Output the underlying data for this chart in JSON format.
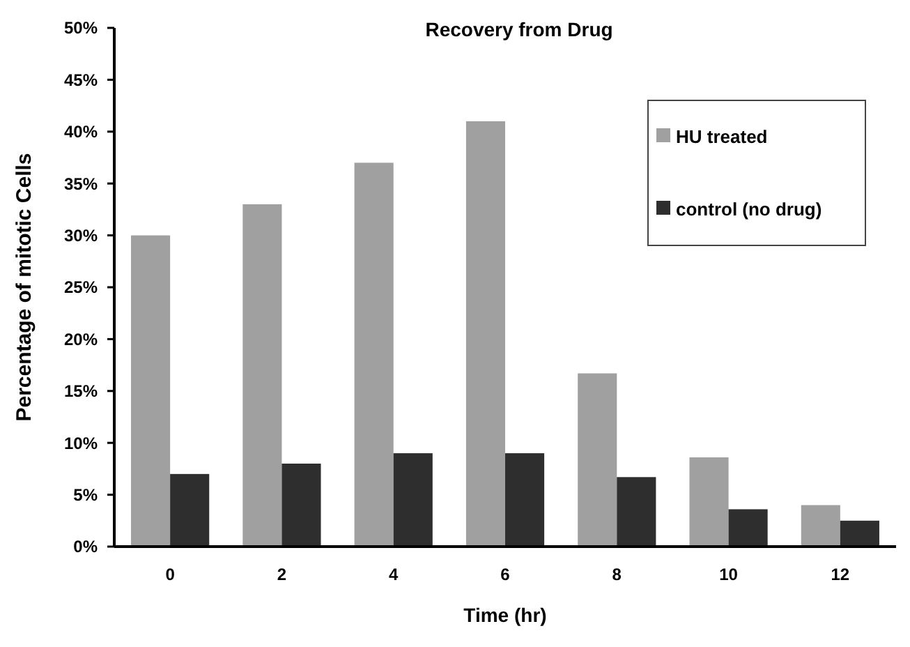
{
  "chart_data": {
    "type": "bar",
    "title": "Recovery from Drug",
    "xlabel": "Time (hr)",
    "ylabel": "Percentage of mitotic Cells",
    "categories": [
      "0",
      "2",
      "4",
      "6",
      "8",
      "10",
      "12"
    ],
    "series": [
      {
        "name": "HU treated",
        "color": "#a0a0a0",
        "values": [
          30,
          33,
          37,
          41,
          16.7,
          8.6,
          4.0
        ]
      },
      {
        "name": "control (no drug)",
        "color": "#2e2e2e",
        "values": [
          7,
          8,
          9,
          9,
          6.7,
          3.6,
          2.5
        ]
      }
    ],
    "ylim": [
      0,
      50
    ],
    "yticks": [
      {
        "value": 0,
        "label": "0%"
      },
      {
        "value": 5,
        "label": "5%"
      },
      {
        "value": 10,
        "label": "10%"
      },
      {
        "value": 15,
        "label": "15%"
      },
      {
        "value": 20,
        "label": "20%"
      },
      {
        "value": 25,
        "label": "25%"
      },
      {
        "value": 30,
        "label": "30%"
      },
      {
        "value": 35,
        "label": "35%"
      },
      {
        "value": 40,
        "label": "40%"
      },
      {
        "value": 45,
        "label": "45%"
      },
      {
        "value": 50,
        "label": "50%"
      }
    ],
    "grid": false,
    "legend": "top right"
  }
}
